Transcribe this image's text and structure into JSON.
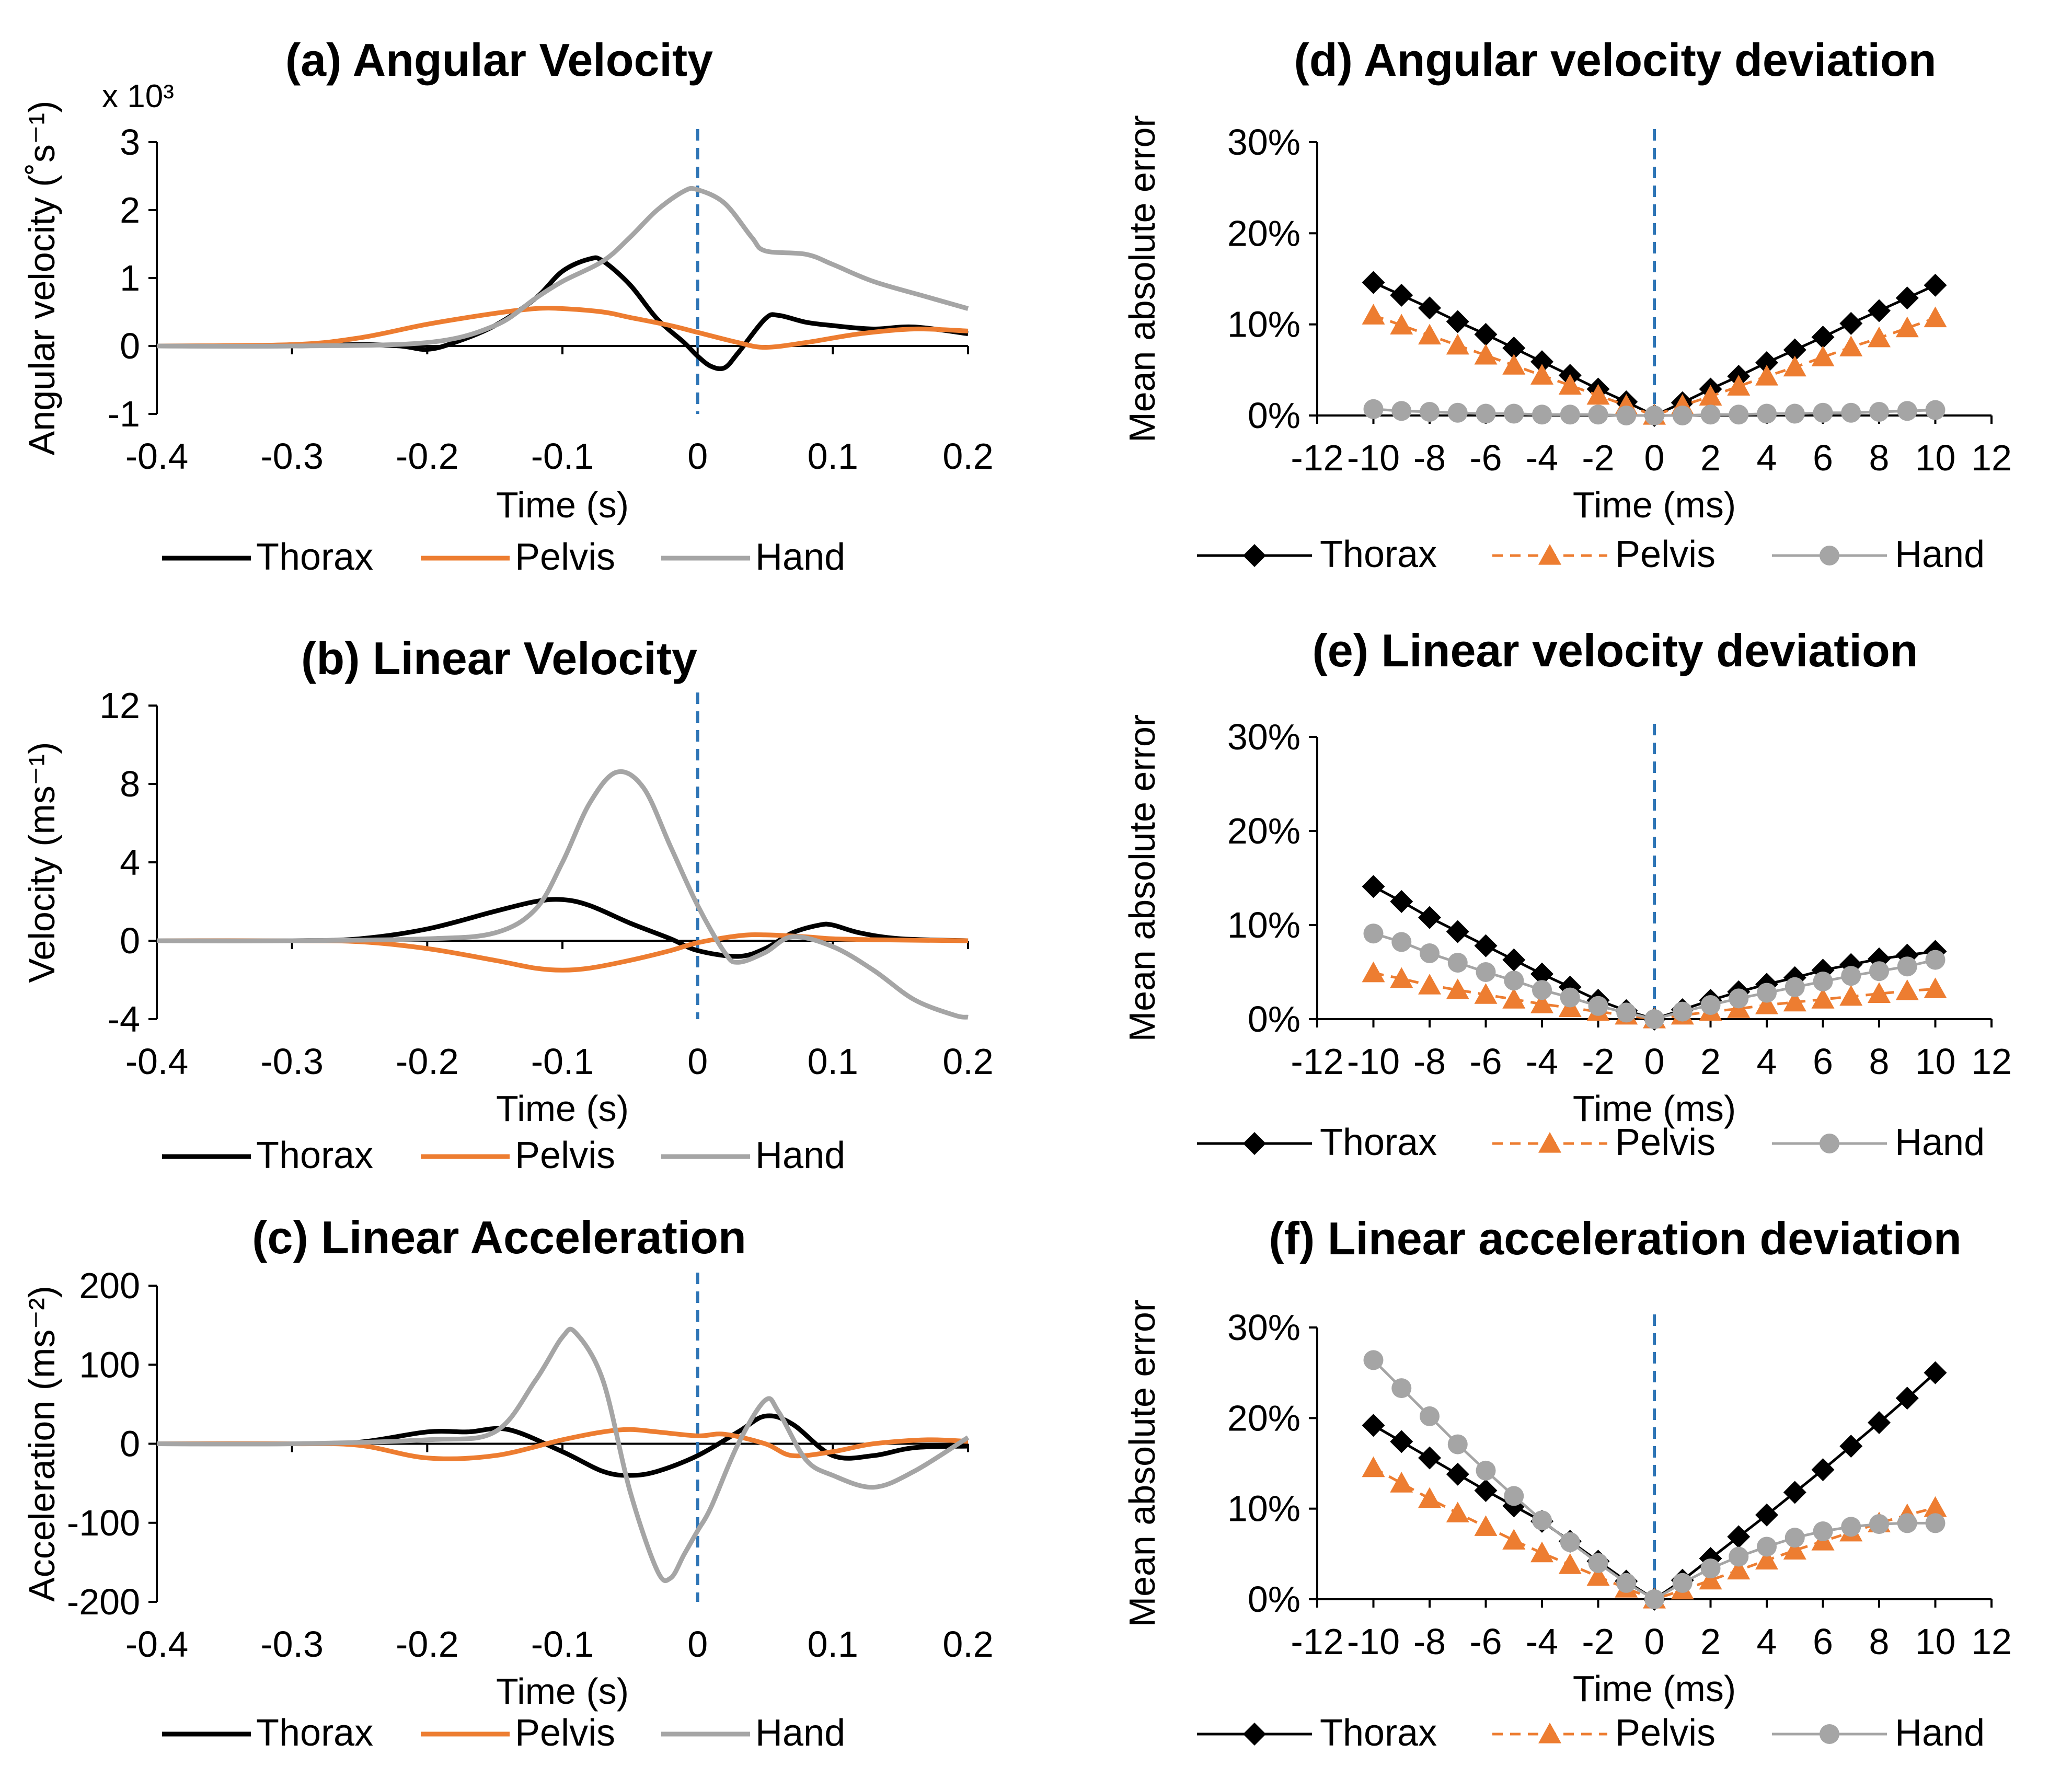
{
  "colors": {
    "thorax": "#000000",
    "pelvis": "#ED7D31",
    "hand": "#A5A5A5",
    "event": "#2E75B6",
    "axis": "#000000"
  },
  "chart_data": [
    {
      "id": "a",
      "type": "line",
      "title": "(a) Angular Velocity",
      "xlabel": "Time (s)",
      "ylabel": "Angular velocity (˚s⁻¹)",
      "multiplier": "x 10³",
      "xlim": [
        -0.4,
        0.2
      ],
      "ylim": [
        -1,
        3
      ],
      "xticks": [
        -0.4,
        -0.3,
        -0.2,
        -0.1,
        0,
        0.1,
        0.2
      ],
      "xtick_labels": [
        "-0.4",
        "-0.3",
        "-0.2",
        "-0.1",
        "0",
        "0.1",
        "0.2"
      ],
      "yticks": [
        -1,
        0,
        1,
        2,
        3
      ],
      "ytick_labels": [
        "-1",
        "0",
        "1",
        "2",
        "3"
      ],
      "event_x": 0,
      "series": [
        {
          "name": "Thorax",
          "style": "line",
          "color": "#000000",
          "x": [
            -0.4,
            -0.3,
            -0.25,
            -0.22,
            -0.2,
            -0.18,
            -0.15,
            -0.12,
            -0.1,
            -0.08,
            -0.07,
            -0.05,
            -0.03,
            -0.01,
            0,
            0.01,
            0.02,
            0.03,
            0.05,
            0.06,
            0.08,
            0.1,
            0.13,
            0.16,
            0.2
          ],
          "y": [
            0,
            0,
            0.02,
            0,
            -0.05,
            0.05,
            0.3,
            0.7,
            1.1,
            1.28,
            1.25,
            0.9,
            0.4,
            0.05,
            -0.15,
            -0.3,
            -0.32,
            -0.1,
            0.4,
            0.45,
            0.35,
            0.3,
            0.25,
            0.28,
            0.18
          ]
        },
        {
          "name": "Pelvis",
          "style": "line",
          "color": "#ED7D31",
          "x": [
            -0.4,
            -0.3,
            -0.25,
            -0.2,
            -0.15,
            -0.12,
            -0.1,
            -0.07,
            -0.05,
            -0.02,
            0,
            0.03,
            0.05,
            0.08,
            0.12,
            0.16,
            0.2
          ],
          "y": [
            0,
            0.02,
            0.12,
            0.32,
            0.48,
            0.55,
            0.55,
            0.5,
            0.42,
            0.3,
            0.2,
            0.05,
            -0.02,
            0.05,
            0.18,
            0.25,
            0.22
          ]
        },
        {
          "name": "Hand",
          "style": "line",
          "color": "#A5A5A5",
          "x": [
            -0.4,
            -0.3,
            -0.2,
            -0.15,
            -0.12,
            -0.1,
            -0.07,
            -0.05,
            -0.03,
            -0.01,
            0,
            0.02,
            0.04,
            0.05,
            0.08,
            0.1,
            0.13,
            0.17,
            0.2
          ],
          "y": [
            0,
            0,
            0.05,
            0.3,
            0.7,
            0.95,
            1.25,
            1.6,
            2.0,
            2.28,
            2.3,
            2.1,
            1.6,
            1.4,
            1.35,
            1.2,
            0.95,
            0.72,
            0.55
          ]
        }
      ],
      "legend": [
        "Thorax",
        "Pelvis",
        "Hand"
      ]
    },
    {
      "id": "b",
      "type": "line",
      "title": "(b) Linear Velocity",
      "xlabel": "Time (s)",
      "ylabel": "Velocity (ms⁻¹)",
      "xlim": [
        -0.4,
        0.2
      ],
      "ylim": [
        -4,
        12
      ],
      "xticks": [
        -0.4,
        -0.3,
        -0.2,
        -0.1,
        0,
        0.1,
        0.2
      ],
      "xtick_labels": [
        "-0.4",
        "-0.3",
        "-0.2",
        "-0.1",
        "0",
        "0.1",
        "0.2"
      ],
      "yticks": [
        -4,
        0,
        4,
        8,
        12
      ],
      "ytick_labels": [
        "-4",
        "0",
        "4",
        "8",
        "12"
      ],
      "event_x": 0,
      "series": [
        {
          "name": "Thorax",
          "style": "line",
          "color": "#000000",
          "x": [
            -0.4,
            -0.3,
            -0.25,
            -0.2,
            -0.15,
            -0.12,
            -0.1,
            -0.08,
            -0.05,
            -0.02,
            0,
            0.03,
            0.05,
            0.07,
            0.09,
            0.1,
            0.12,
            0.15,
            0.2
          ],
          "y": [
            0,
            0,
            0.1,
            0.6,
            1.5,
            2.0,
            2.1,
            1.8,
            0.9,
            0.1,
            -0.5,
            -0.8,
            -0.4,
            0.4,
            0.8,
            0.8,
            0.4,
            0.1,
            0
          ]
        },
        {
          "name": "Pelvis",
          "style": "line",
          "color": "#ED7D31",
          "x": [
            -0.4,
            -0.3,
            -0.25,
            -0.2,
            -0.15,
            -0.12,
            -0.1,
            -0.08,
            -0.05,
            -0.02,
            0,
            0.03,
            0.05,
            0.08,
            0.1,
            0.13,
            0.2
          ],
          "y": [
            0,
            0,
            -0.05,
            -0.4,
            -1.0,
            -1.4,
            -1.5,
            -1.4,
            -1.0,
            -0.5,
            -0.1,
            0.25,
            0.3,
            0.2,
            0.1,
            0.05,
            0
          ]
        },
        {
          "name": "Hand",
          "style": "line",
          "color": "#A5A5A5",
          "x": [
            -0.4,
            -0.3,
            -0.2,
            -0.15,
            -0.12,
            -0.1,
            -0.08,
            -0.06,
            -0.04,
            -0.02,
            0,
            0.02,
            0.03,
            0.05,
            0.07,
            0.1,
            0.13,
            0.16,
            0.19,
            0.2
          ],
          "y": [
            0,
            0,
            0.1,
            0.4,
            1.6,
            4.0,
            7.0,
            8.6,
            7.8,
            4.8,
            1.8,
            -0.6,
            -1.1,
            -0.6,
            0.2,
            -0.3,
            -1.5,
            -3.0,
            -3.8,
            -3.9
          ]
        }
      ],
      "legend": [
        "Thorax",
        "Pelvis",
        "Hand"
      ]
    },
    {
      "id": "c",
      "type": "line",
      "title": "(c) Linear Acceleration",
      "xlabel": "Time (s)",
      "ylabel": "Acceleration (ms⁻²)",
      "xlim": [
        -0.4,
        0.2
      ],
      "ylim": [
        -200,
        200
      ],
      "xticks": [
        -0.4,
        -0.3,
        -0.2,
        -0.1,
        0,
        0.1,
        0.2
      ],
      "xtick_labels": [
        "-0.4",
        "-0.3",
        "-0.2",
        "-0.1",
        "0",
        "0.1",
        "0.2"
      ],
      "yticks": [
        -200,
        -100,
        0,
        100,
        200
      ],
      "ytick_labels": [
        "-200",
        "-100",
        "0",
        "100",
        "200"
      ],
      "event_x": 0,
      "series": [
        {
          "name": "Thorax",
          "style": "line",
          "color": "#000000",
          "x": [
            -0.4,
            -0.3,
            -0.25,
            -0.2,
            -0.17,
            -0.14,
            -0.1,
            -0.07,
            -0.05,
            -0.03,
            0,
            0.03,
            0.05,
            0.07,
            0.1,
            0.13,
            0.16,
            0.2
          ],
          "y": [
            0,
            0,
            2,
            15,
            15,
            18,
            -10,
            -35,
            -40,
            -35,
            -15,
            15,
            35,
            25,
            -15,
            -15,
            -5,
            -3
          ]
        },
        {
          "name": "Pelvis",
          "style": "line",
          "color": "#ED7D31",
          "x": [
            -0.4,
            -0.3,
            -0.25,
            -0.2,
            -0.15,
            -0.1,
            -0.07,
            -0.05,
            -0.03,
            0,
            0.02,
            0.05,
            0.07,
            0.1,
            0.13,
            0.17,
            0.2
          ],
          "y": [
            0,
            0,
            -2,
            -18,
            -15,
            5,
            15,
            18,
            15,
            10,
            12,
            0,
            -15,
            -10,
            0,
            5,
            3
          ]
        },
        {
          "name": "Hand",
          "style": "line",
          "color": "#A5A5A5",
          "x": [
            -0.4,
            -0.3,
            -0.2,
            -0.15,
            -0.12,
            -0.1,
            -0.09,
            -0.07,
            -0.05,
            -0.03,
            -0.02,
            -0.01,
            0,
            0.01,
            0.03,
            0.05,
            0.06,
            0.08,
            0.1,
            0.13,
            0.16,
            0.2
          ],
          "y": [
            0,
            0,
            5,
            15,
            80,
            135,
            140,
            80,
            -60,
            -160,
            -170,
            -140,
            -110,
            -80,
            0,
            55,
            40,
            -20,
            -40,
            -55,
            -35,
            8
          ]
        }
      ],
      "legend": [
        "Thorax",
        "Pelvis",
        "Hand"
      ]
    },
    {
      "id": "d",
      "type": "line",
      "title": "(d) Angular velocity deviation",
      "xlabel": "Time (ms)",
      "ylabel": "Mean absolute error",
      "xlim": [
        -12,
        12
      ],
      "ylim": [
        0,
        30
      ],
      "xticks": [
        -12,
        -10,
        -8,
        -6,
        -4,
        -2,
        0,
        2,
        4,
        6,
        8,
        10,
        12
      ],
      "xtick_labels": [
        "-12",
        "-10",
        "-8",
        "-6",
        "-4",
        "-2",
        "0",
        "2",
        "4",
        "6",
        "8",
        "10",
        "12"
      ],
      "yticks": [
        0,
        10,
        20,
        30
      ],
      "ytick_labels": [
        "0%",
        "10%",
        "20%",
        "30%"
      ],
      "event_x": 0,
      "x": [
        -10,
        -9,
        -8,
        -7,
        -6,
        -5,
        -4,
        -3,
        -2,
        -1,
        0,
        1,
        2,
        3,
        4,
        5,
        6,
        7,
        8,
        9,
        10
      ],
      "series": [
        {
          "name": "Thorax",
          "style": "diamond-solid",
          "color": "#000000",
          "values": [
            14.6,
            13.2,
            11.8,
            10.3,
            8.9,
            7.4,
            5.9,
            4.4,
            2.9,
            1.5,
            0,
            1.4,
            2.9,
            4.3,
            5.8,
            7.2,
            8.6,
            10.1,
            11.5,
            12.9,
            14.3
          ]
        },
        {
          "name": "Pelvis",
          "style": "triangle-dashed",
          "color": "#ED7D31",
          "values": [
            11.0,
            9.9,
            8.8,
            7.7,
            6.6,
            5.5,
            4.4,
            3.3,
            2.2,
            1.1,
            0,
            1.1,
            2.1,
            3.2,
            4.3,
            5.3,
            6.4,
            7.5,
            8.5,
            9.6,
            10.7
          ]
        },
        {
          "name": "Hand",
          "style": "circle-solid",
          "color": "#A5A5A5",
          "values": [
            0.7,
            0.5,
            0.4,
            0.3,
            0.2,
            0.2,
            0.1,
            0.1,
            0.1,
            0.0,
            0,
            0.0,
            0.1,
            0.1,
            0.2,
            0.2,
            0.3,
            0.3,
            0.4,
            0.5,
            0.6
          ]
        }
      ],
      "legend": [
        "Thorax",
        "Pelvis",
        "Hand"
      ]
    },
    {
      "id": "e",
      "type": "line",
      "title": "(e) Linear velocity deviation",
      "xlabel": "Time (ms)",
      "ylabel": "Mean absolute error",
      "xlim": [
        -12,
        12
      ],
      "ylim": [
        0,
        30
      ],
      "xticks": [
        -12,
        -10,
        -8,
        -6,
        -4,
        -2,
        0,
        2,
        4,
        6,
        8,
        10,
        12
      ],
      "xtick_labels": [
        "-12",
        "-10",
        "-8",
        "-6",
        "-4",
        "-2",
        "0",
        "2",
        "4",
        "6",
        "8",
        "10",
        "12"
      ],
      "yticks": [
        0,
        10,
        20,
        30
      ],
      "ytick_labels": [
        "0%",
        "10%",
        "20%",
        "30%"
      ],
      "event_x": 0,
      "x": [
        -10,
        -9,
        -8,
        -7,
        -6,
        -5,
        -4,
        -3,
        -2,
        -1,
        0,
        1,
        2,
        3,
        4,
        5,
        6,
        7,
        8,
        9,
        10
      ],
      "series": [
        {
          "name": "Thorax",
          "style": "diamond-solid",
          "color": "#000000",
          "values": [
            14.1,
            12.5,
            10.8,
            9.3,
            7.8,
            6.3,
            4.8,
            3.4,
            2.0,
            0.9,
            0,
            1.0,
            2.0,
            2.9,
            3.7,
            4.4,
            5.2,
            5.8,
            6.4,
            6.8,
            7.2
          ]
        },
        {
          "name": "Pelvis",
          "style": "triangle-dashed",
          "color": "#ED7D31",
          "values": [
            4.9,
            4.3,
            3.6,
            3.1,
            2.6,
            2.1,
            1.6,
            1.2,
            0.8,
            0.4,
            0,
            0.4,
            0.8,
            1.1,
            1.5,
            1.8,
            2.1,
            2.4,
            2.7,
            3.0,
            3.2
          ]
        },
        {
          "name": "Hand",
          "style": "circle-solid",
          "color": "#A5A5A5",
          "values": [
            9.1,
            8.2,
            7.0,
            6.0,
            5.0,
            4.1,
            3.1,
            2.3,
            1.4,
            0.7,
            0,
            0.8,
            1.5,
            2.2,
            2.8,
            3.4,
            4.0,
            4.6,
            5.1,
            5.6,
            6.3
          ]
        }
      ],
      "legend": [
        "Thorax",
        "Pelvis",
        "Hand"
      ]
    },
    {
      "id": "f",
      "type": "line",
      "title": "(f) Linear acceleration deviation",
      "xlabel": "Time (ms)",
      "ylabel": "Mean absolute error",
      "xlim": [
        -12,
        12
      ],
      "ylim": [
        0,
        30
      ],
      "xticks": [
        -12,
        -10,
        -8,
        -6,
        -4,
        -2,
        0,
        2,
        4,
        6,
        8,
        10,
        12
      ],
      "xtick_labels": [
        "-12",
        "-10",
        "-8",
        "-6",
        "-4",
        "-2",
        "0",
        "2",
        "4",
        "6",
        "8",
        "10",
        "12"
      ],
      "yticks": [
        0,
        10,
        20,
        30
      ],
      "ytick_labels": [
        "0%",
        "10%",
        "20%",
        "30%"
      ],
      "event_x": 0,
      "x": [
        -10,
        -9,
        -8,
        -7,
        -6,
        -5,
        -4,
        -3,
        -2,
        -1,
        0,
        1,
        2,
        3,
        4,
        5,
        6,
        7,
        8,
        9,
        10
      ],
      "series": [
        {
          "name": "Thorax",
          "style": "diamond-solid",
          "color": "#000000",
          "values": [
            19.2,
            17.4,
            15.6,
            13.8,
            12.0,
            10.3,
            8.6,
            6.4,
            4.2,
            2.0,
            0,
            2.1,
            4.5,
            6.9,
            9.3,
            11.8,
            14.3,
            16.9,
            19.5,
            22.2,
            25.0
          ]
        },
        {
          "name": "Pelvis",
          "style": "triangle-dashed",
          "color": "#ED7D31",
          "values": [
            14.5,
            12.8,
            11.1,
            9.5,
            8.0,
            6.5,
            5.1,
            3.8,
            2.5,
            1.2,
            0,
            1.0,
            2.1,
            3.2,
            4.3,
            5.4,
            6.4,
            7.4,
            8.4,
            9.3,
            10.1
          ]
        },
        {
          "name": "Hand",
          "style": "circle-solid",
          "color": "#A5A5A5",
          "values": [
            26.4,
            23.3,
            20.2,
            17.1,
            14.2,
            11.4,
            8.7,
            6.3,
            4.0,
            1.8,
            0,
            1.8,
            3.4,
            4.7,
            5.8,
            6.8,
            7.5,
            8.0,
            8.3,
            8.4,
            8.4
          ]
        }
      ],
      "legend": [
        "Thorax",
        "Pelvis",
        "Hand"
      ]
    }
  ]
}
